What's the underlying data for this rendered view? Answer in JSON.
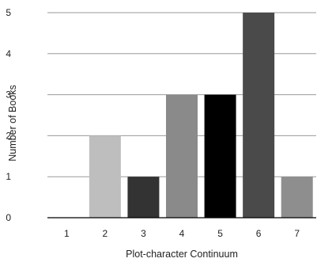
{
  "chart_data": {
    "type": "bar",
    "title": "",
    "xlabel": "Plot-character Continuum",
    "ylabel": "Number of Books",
    "categories": [
      "1",
      "2",
      "3",
      "4",
      "5",
      "6",
      "7"
    ],
    "values": [
      0,
      2,
      1,
      3,
      3,
      5,
      1
    ],
    "ylim": [
      0,
      5
    ],
    "yticks": [
      "0",
      "1",
      "2",
      "3",
      "4",
      "5"
    ],
    "grid": "horizontal",
    "legend": "none",
    "bar_colors": [
      "#9a9a9a",
      "#bebebe",
      "#333333",
      "#8a8a8a",
      "#000000",
      "#4a4a4a",
      "#8e8e8e"
    ],
    "gridline_color": "#9a9a9a",
    "axis_color": "#000000"
  }
}
